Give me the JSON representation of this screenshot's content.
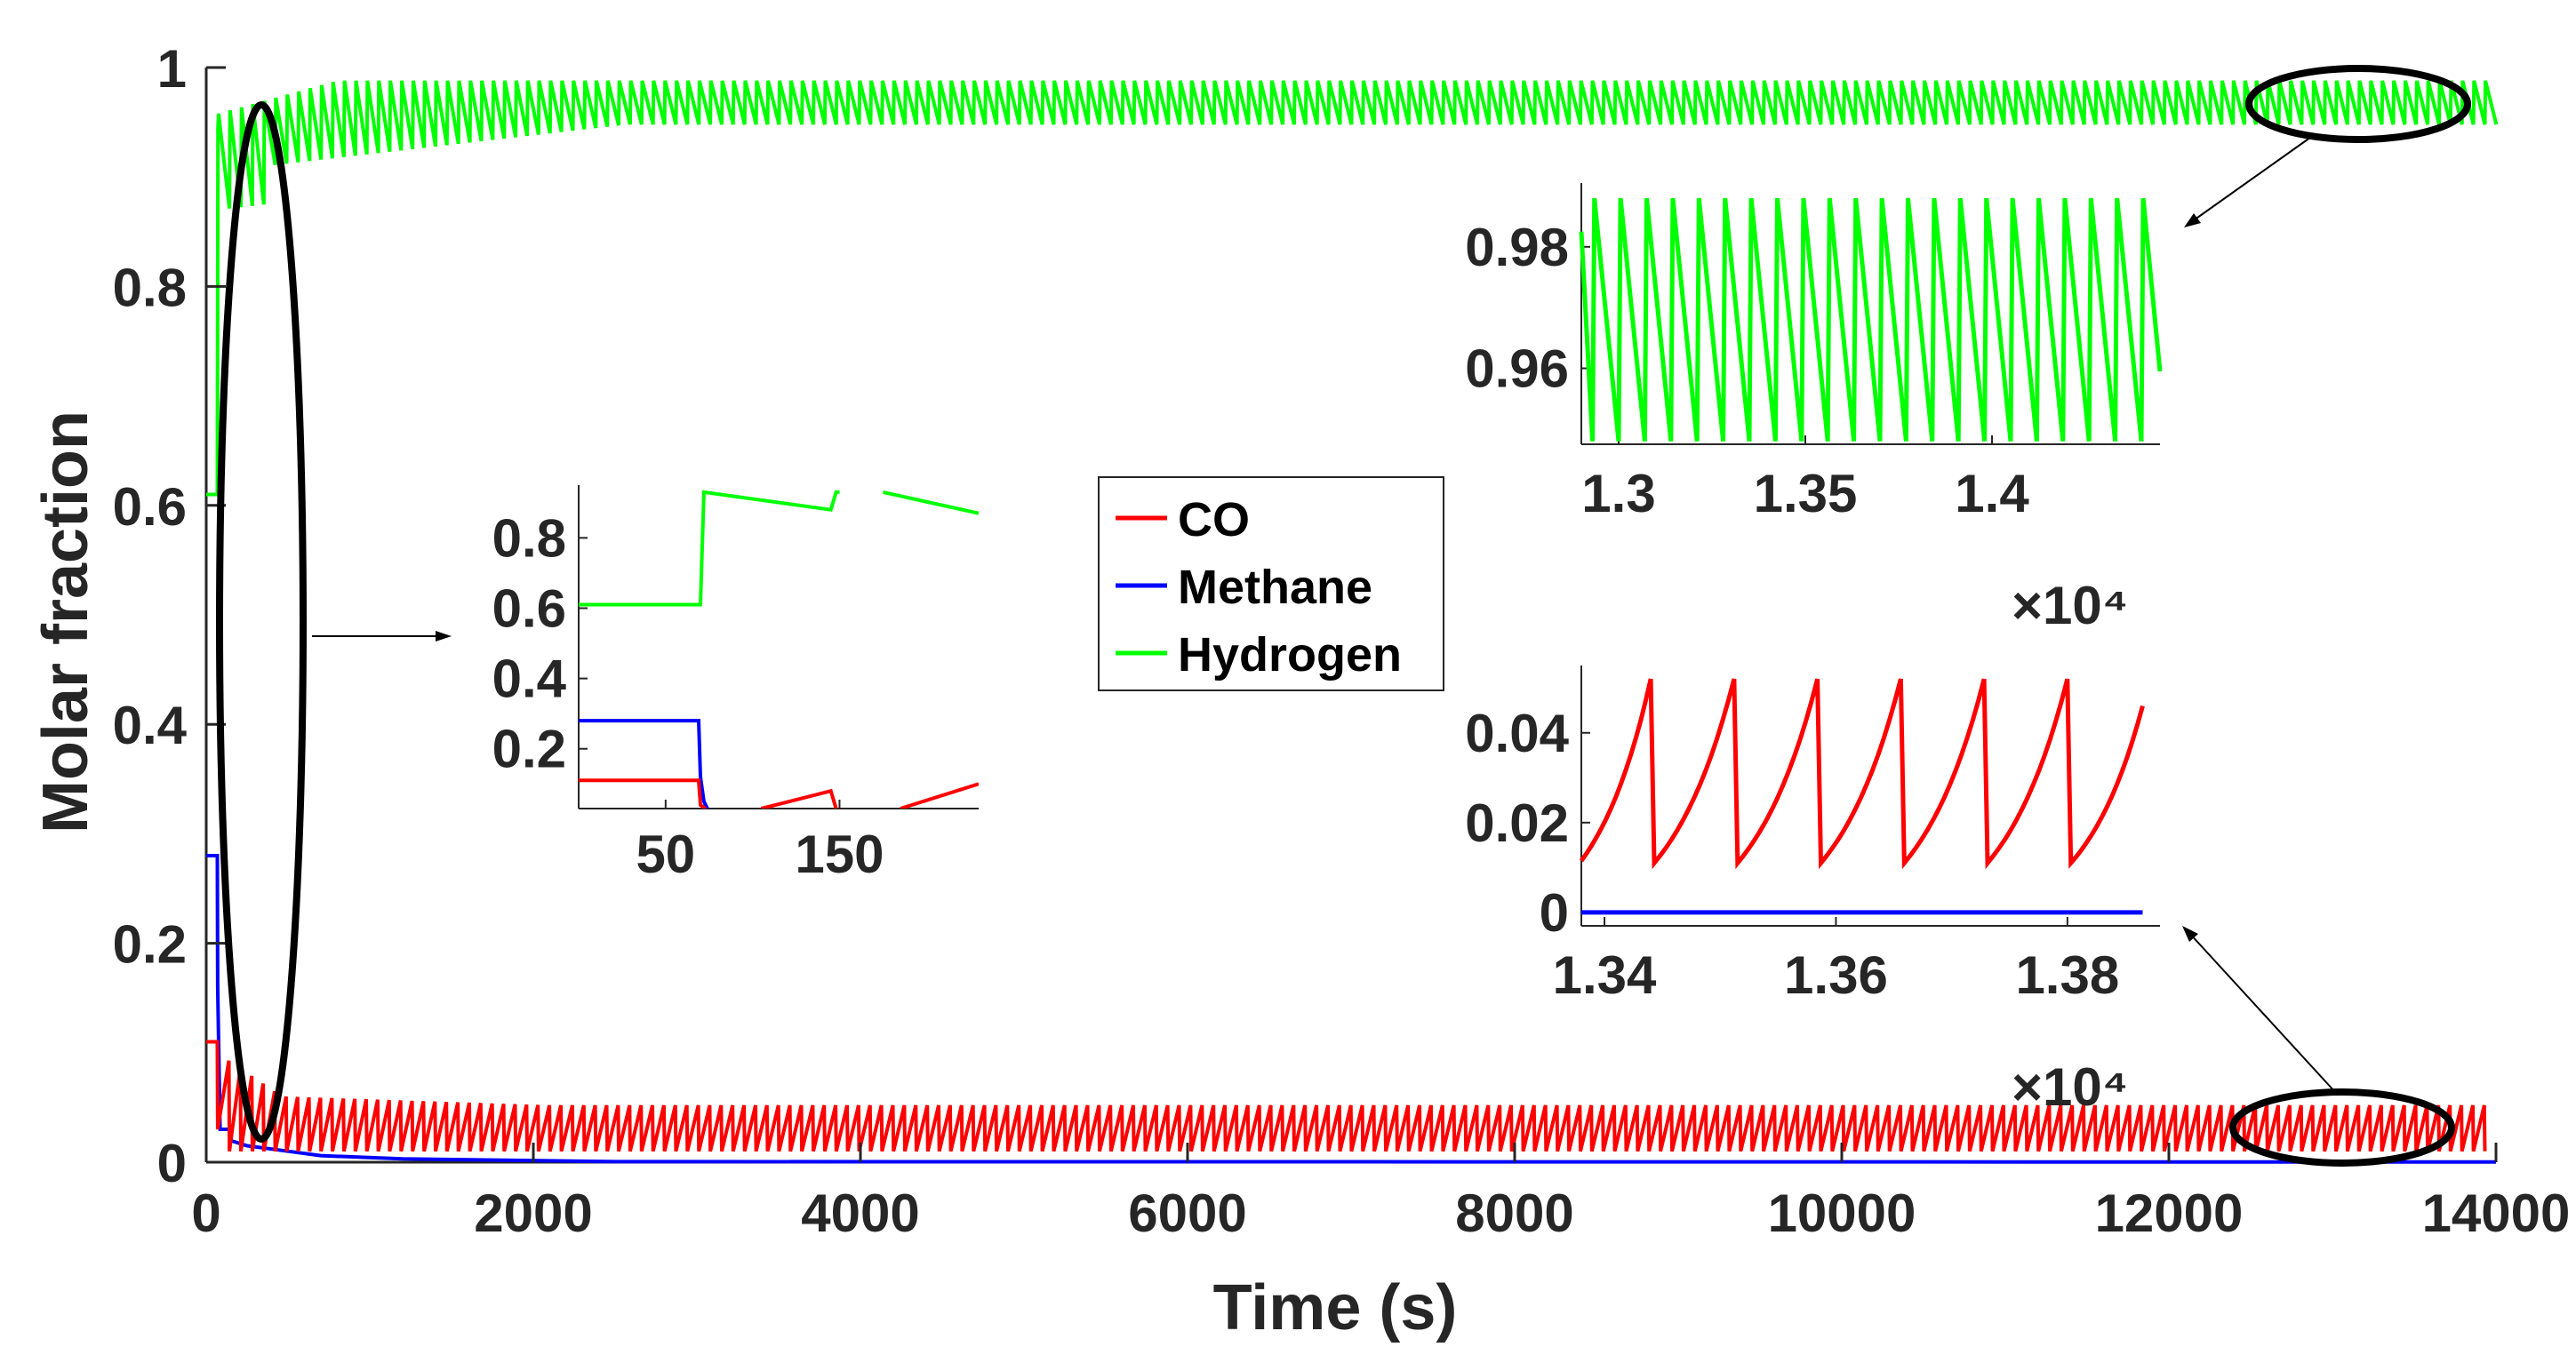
{
  "chart_data": [
    {
      "id": "main",
      "type": "line",
      "xlabel": "Time (s)",
      "ylabel": "Molar fraction",
      "xlim": [
        0,
        14000
      ],
      "ylim": [
        0,
        1
      ],
      "xticks": [
        "0",
        "2000",
        "4000",
        "6000",
        "8000",
        "10000",
        "12000",
        "14000"
      ],
      "yticks": [
        "0",
        "0.2",
        "0.4",
        "0.6",
        "0.8",
        "1"
      ],
      "legend": {
        "placement": "center",
        "entries": [
          "CO",
          "Methane",
          "Hydrogen"
        ]
      },
      "series": [
        {
          "name": "CO",
          "color": "#ff0000",
          "description_values": {
            "initial": 0.11,
            "after_switch": 0.0,
            "oscillation_range": [
              0.01,
              0.052
            ],
            "period_s": 70
          }
        },
        {
          "name": "Methane",
          "color": "#0000ff",
          "description_values": {
            "initial": 0.28,
            "switch_time": 70,
            "final": 0.0
          }
        },
        {
          "name": "Hydrogen",
          "color": "#00ff00",
          "description_values": {
            "initial": 0.61,
            "switch_time": 70,
            "oscillation_range": [
              0.946,
              0.988
            ],
            "period_s": 70
          }
        }
      ]
    },
    {
      "id": "inset-start",
      "type": "line",
      "xlim": [
        0,
        230
      ],
      "ylim": [
        0.03,
        0.95
      ],
      "xticks": [
        "50",
        "150"
      ],
      "yticks": [
        "0.2",
        "0.4",
        "0.6",
        "0.8"
      ],
      "series": [
        {
          "name": "Hydrogen",
          "color": "#00ff00",
          "points": [
            [
              0,
              0.61
            ],
            [
              70,
              0.61
            ],
            [
              72,
              0.93
            ],
            [
              145,
              0.88
            ],
            [
              148,
              0.93
            ],
            [
              150,
              0.93
            ]
          ],
          "points2": [
            [
              175,
              0.93
            ],
            [
              230,
              0.87
            ]
          ]
        },
        {
          "name": "Methane",
          "color": "#0000ff",
          "points": [
            [
              0,
              0.28
            ],
            [
              69,
              0.28
            ],
            [
              70,
              0.12
            ],
            [
              72,
              0.05
            ],
            [
              74,
              0.03
            ]
          ]
        },
        {
          "name": "CO",
          "color": "#ff0000",
          "points": [
            [
              0,
              0.11
            ],
            [
              69,
              0.11
            ],
            [
              70,
              0.04
            ],
            [
              73,
              0.03
            ]
          ],
          "points2": [
            [
              105,
              0.03
            ],
            [
              145,
              0.08
            ],
            [
              148,
              0.03
            ]
          ],
          "points3": [
            [
              185,
              0.03
            ],
            [
              230,
              0.1
            ]
          ]
        }
      ]
    },
    {
      "id": "inset-hydrogen",
      "type": "line",
      "xlim": [
        12900,
        14450
      ],
      "ylim": [
        0.9475,
        0.9905
      ],
      "xticks": [
        "1.3",
        "1.35",
        "1.4"
      ],
      "yticks": [
        "0.96",
        "0.98"
      ],
      "exponent": "×10⁴",
      "series": [
        {
          "name": "Hydrogen",
          "color": "#00ff00",
          "oscillation": {
            "min": 0.948,
            "max": 0.988,
            "start_x": 12900,
            "period": 70,
            "end_x": 14450,
            "end_y": 0.9595
          }
        }
      ]
    },
    {
      "id": "inset-co",
      "type": "line",
      "xlim": [
        13380,
        13880
      ],
      "ylim": [
        -0.003,
        0.055
      ],
      "xticks": [
        "1.34",
        "1.36",
        "1.38"
      ],
      "yticks": [
        "0",
        "0.02",
        "0.04"
      ],
      "exponent": "×10⁴",
      "series": [
        {
          "name": "CO",
          "color": "#ff0000",
          "oscillation": {
            "min": 0.011,
            "max": 0.052,
            "start_x": 13380,
            "start_y": 0.0115,
            "period": 72,
            "end_x": 13865,
            "end_y": 0.046
          }
        },
        {
          "name": "Methane",
          "color": "#0000ff",
          "constant": 0.0
        }
      ]
    }
  ],
  "colors": {
    "co": "#ff0000",
    "methane": "#0000ff",
    "hydrogen": "#00ff00",
    "axis": "#262626"
  }
}
